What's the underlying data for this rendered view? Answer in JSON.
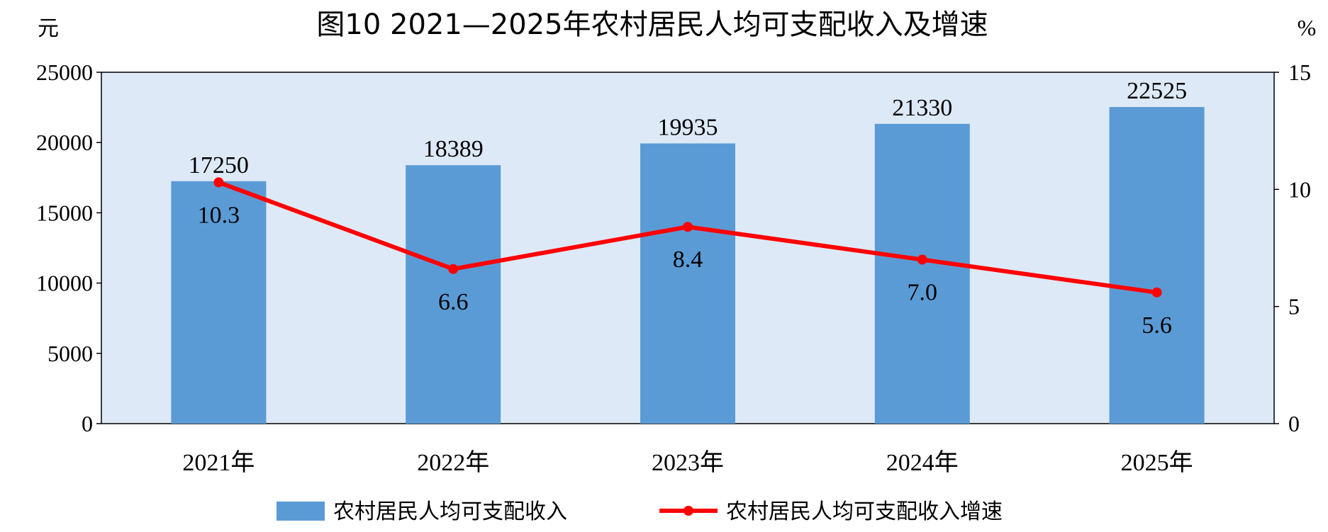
{
  "chart_data": {
    "type": "bar",
    "title": "图10  2021—2025年农村居民人均可支配收入及增速",
    "ylabel_left": "元",
    "ylabel_right": "%",
    "categories": [
      "2021年",
      "2022年",
      "2023年",
      "2024年",
      "2025年"
    ],
    "ylim_left": [
      0,
      25000
    ],
    "yticks_left": [
      "0",
      "5000",
      "10000",
      "15000",
      "20000",
      "25000"
    ],
    "ylim_right": [
      0,
      15
    ],
    "yticks_right": [
      "0",
      "5",
      "10",
      "15"
    ],
    "grid": false,
    "legend_position": "bottom",
    "series": [
      {
        "name": "农村居民人均可支配收入",
        "type": "bar",
        "axis": "left",
        "color": "#5b9bd5",
        "values": [
          17250,
          18389,
          19935,
          21330,
          22525
        ],
        "labels": [
          "17250",
          "18389",
          "19935",
          "21330",
          "22525"
        ]
      },
      {
        "name": "农村居民人均可支配收入增速",
        "type": "line",
        "axis": "right",
        "color": "#ff0000",
        "values": [
          10.3,
          6.6,
          8.4,
          7.0,
          5.6
        ],
        "labels": [
          "10.3",
          "6.6",
          "8.4",
          "7.0",
          "5.6"
        ]
      }
    ],
    "plot_background": "#dde9f6"
  }
}
